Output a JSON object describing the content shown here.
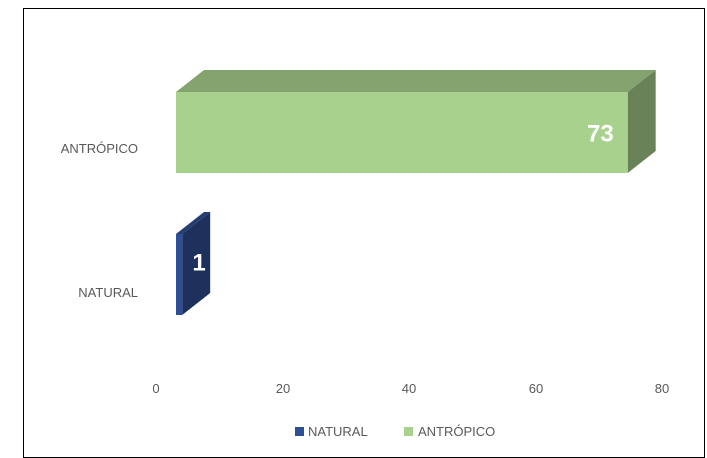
{
  "chart_data": {
    "type": "bar",
    "orientation": "horizontal",
    "style": "3d",
    "categories": [
      "NATURAL",
      "ANTRÓPICO"
    ],
    "series": [
      {
        "name": "NATURAL",
        "color": "#2E4F95",
        "values": [
          1,
          null
        ]
      },
      {
        "name": "ANTRÓPICO",
        "color": "#A9D18E",
        "values": [
          null,
          73
        ]
      }
    ],
    "data_labels": [
      "1",
      "73"
    ],
    "xlim": [
      0,
      80
    ],
    "x_ticks": [
      "0",
      "20",
      "40",
      "60",
      "80"
    ],
    "grid": false,
    "legend": {
      "position": "bottom",
      "entries": [
        "NATURAL",
        "ANTRÓPICO"
      ]
    }
  }
}
